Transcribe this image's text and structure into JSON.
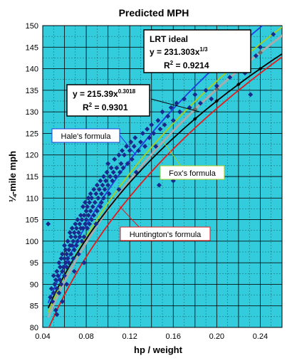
{
  "chart_data": {
    "type": "scatter",
    "title": "Predicted MPH",
    "xlabel": "hp / weight",
    "ylabel": "¼-mile mph",
    "xlim": [
      0.04,
      0.26
    ],
    "ylim": [
      80,
      150
    ],
    "x_ticks": [
      0.04,
      0.08,
      0.12,
      0.16,
      0.2,
      0.24
    ],
    "x_tick_labels": [
      "0.04",
      "0.08",
      "0.12",
      "0.16",
      "0.20",
      "0.24"
    ],
    "y_ticks": [
      80,
      85,
      90,
      95,
      100,
      105,
      110,
      115,
      120,
      125,
      130,
      135,
      140,
      145,
      150
    ],
    "grid": true,
    "plot_background": "#33ccdd",
    "marker_color": "#1a2a8c",
    "series": [
      {
        "name": "Hale's formula",
        "color": "#1f3fe0",
        "coef": 240.7,
        "exp": 0.3333
      },
      {
        "name": "Fox's formula",
        "color": "#a6cf1d",
        "coef": 234.5,
        "exp": 0.3333
      },
      {
        "name": "",
        "color": "#aaaaaa",
        "coef": 231.303,
        "exp": 0.3333
      },
      {
        "name": "",
        "color": "#000000",
        "coef": 215.39,
        "exp": 0.3018
      },
      {
        "name": "Huntington's formula",
        "color": "#e51a1a",
        "coef": 223.6,
        "exp": 0.3333
      }
    ],
    "points": [
      [
        0.045,
        104
      ],
      [
        0.047,
        87
      ],
      [
        0.048,
        89
      ],
      [
        0.049,
        86
      ],
      [
        0.05,
        88
      ],
      [
        0.05,
        92
      ],
      [
        0.051,
        90
      ],
      [
        0.052,
        84
      ],
      [
        0.052,
        91
      ],
      [
        0.053,
        89
      ],
      [
        0.053,
        93
      ],
      [
        0.054,
        92
      ],
      [
        0.055,
        88
      ],
      [
        0.055,
        95
      ],
      [
        0.056,
        91
      ],
      [
        0.056,
        94
      ],
      [
        0.057,
        90
      ],
      [
        0.057,
        96
      ],
      [
        0.058,
        93
      ],
      [
        0.058,
        97
      ],
      [
        0.059,
        94
      ],
      [
        0.06,
        92
      ],
      [
        0.06,
        96
      ],
      [
        0.06,
        99
      ],
      [
        0.061,
        95
      ],
      [
        0.061,
        98
      ],
      [
        0.062,
        97
      ],
      [
        0.062,
        94
      ],
      [
        0.063,
        96
      ],
      [
        0.063,
        100
      ],
      [
        0.064,
        98
      ],
      [
        0.064,
        95
      ],
      [
        0.065,
        99
      ],
      [
        0.065,
        102
      ],
      [
        0.066,
        97
      ],
      [
        0.066,
        101
      ],
      [
        0.067,
        99
      ],
      [
        0.067,
        103
      ],
      [
        0.068,
        96
      ],
      [
        0.068,
        100
      ],
      [
        0.069,
        102
      ],
      [
        0.069,
        98
      ],
      [
        0.07,
        101
      ],
      [
        0.07,
        104
      ],
      [
        0.071,
        99
      ],
      [
        0.071,
        103
      ],
      [
        0.072,
        100
      ],
      [
        0.072,
        105
      ],
      [
        0.073,
        102
      ],
      [
        0.073,
        97
      ],
      [
        0.074,
        104
      ],
      [
        0.074,
        101
      ],
      [
        0.075,
        103
      ],
      [
        0.075,
        106
      ],
      [
        0.076,
        100
      ],
      [
        0.076,
        105
      ],
      [
        0.077,
        103
      ],
      [
        0.077,
        108
      ],
      [
        0.078,
        101
      ],
      [
        0.078,
        106
      ],
      [
        0.079,
        104
      ],
      [
        0.079,
        109
      ],
      [
        0.08,
        105
      ],
      [
        0.08,
        107
      ],
      [
        0.081,
        103
      ],
      [
        0.081,
        108
      ],
      [
        0.082,
        106
      ],
      [
        0.082,
        110
      ],
      [
        0.083,
        104
      ],
      [
        0.083,
        109
      ],
      [
        0.084,
        107
      ],
      [
        0.084,
        111
      ],
      [
        0.085,
        105
      ],
      [
        0.085,
        110
      ],
      [
        0.086,
        108
      ],
      [
        0.087,
        106
      ],
      [
        0.087,
        112
      ],
      [
        0.088,
        109
      ],
      [
        0.089,
        111
      ],
      [
        0.09,
        107
      ],
      [
        0.09,
        113
      ],
      [
        0.091,
        110
      ],
      [
        0.092,
        112
      ],
      [
        0.093,
        108
      ],
      [
        0.093,
        114
      ],
      [
        0.094,
        111
      ],
      [
        0.095,
        113
      ],
      [
        0.096,
        110
      ],
      [
        0.096,
        115
      ],
      [
        0.097,
        112
      ],
      [
        0.098,
        114
      ],
      [
        0.099,
        116
      ],
      [
        0.1,
        113
      ],
      [
        0.1,
        118
      ],
      [
        0.101,
        111
      ],
      [
        0.102,
        115
      ],
      [
        0.103,
        117
      ],
      [
        0.104,
        114
      ],
      [
        0.105,
        116
      ],
      [
        0.106,
        119
      ],
      [
        0.107,
        115
      ],
      [
        0.108,
        117
      ],
      [
        0.11,
        120
      ],
      [
        0.111,
        116
      ],
      [
        0.112,
        118
      ],
      [
        0.113,
        121
      ],
      [
        0.114,
        117
      ],
      [
        0.115,
        120
      ],
      [
        0.117,
        122
      ],
      [
        0.118,
        118
      ],
      [
        0.12,
        121
      ],
      [
        0.121,
        123
      ],
      [
        0.122,
        119
      ],
      [
        0.124,
        122
      ],
      [
        0.125,
        124
      ],
      [
        0.126,
        116
      ],
      [
        0.128,
        121
      ],
      [
        0.13,
        123
      ],
      [
        0.132,
        125
      ],
      [
        0.134,
        122
      ],
      [
        0.136,
        126
      ],
      [
        0.138,
        124
      ],
      [
        0.14,
        127
      ],
      [
        0.142,
        125
      ],
      [
        0.144,
        122
      ],
      [
        0.146,
        128
      ],
      [
        0.148,
        126
      ],
      [
        0.15,
        130
      ],
      [
        0.152,
        127
      ],
      [
        0.155,
        129
      ],
      [
        0.158,
        131
      ],
      [
        0.16,
        128
      ],
      [
        0.163,
        132
      ],
      [
        0.166,
        130
      ],
      [
        0.17,
        133
      ],
      [
        0.175,
        131
      ],
      [
        0.18,
        134
      ],
      [
        0.185,
        132
      ],
      [
        0.19,
        135
      ],
      [
        0.195,
        133
      ],
      [
        0.2,
        136
      ],
      [
        0.206,
        140
      ],
      [
        0.212,
        138
      ],
      [
        0.215,
        143
      ],
      [
        0.22,
        141
      ],
      [
        0.226,
        139
      ],
      [
        0.231,
        134
      ],
      [
        0.236,
        143
      ],
      [
        0.24,
        145
      ],
      [
        0.252,
        148
      ],
      [
        0.147,
        113
      ],
      [
        0.16,
        114
      ],
      [
        0.11,
        112
      ],
      [
        0.094,
        109
      ],
      [
        0.078,
        95
      ],
      [
        0.058,
        86
      ],
      [
        0.062,
        90
      ],
      [
        0.053,
        83
      ],
      [
        0.069,
        93
      ],
      [
        0.089,
        104
      ]
    ],
    "annotations": [
      {
        "text": "LRT ideal",
        "eq_text": "y = 231.303x",
        "eq_sup": "1/3",
        "r2_text": "R",
        "r2_sup": "2",
        "r2_value": " = 0.9214"
      },
      {
        "eq_text": "y = 215.39x",
        "eq_sup": "0.3018",
        "r2_text": "R",
        "r2_sup": "2",
        "r2_value": " = 0.9301"
      }
    ],
    "legend_labels": [
      {
        "text": "Hale's formula",
        "color": "#1f3fe0"
      },
      {
        "text": "Fox's formula",
        "color": "#a6cf1d"
      },
      {
        "text": "Huntington's formula",
        "color": "#e51a1a"
      }
    ]
  }
}
